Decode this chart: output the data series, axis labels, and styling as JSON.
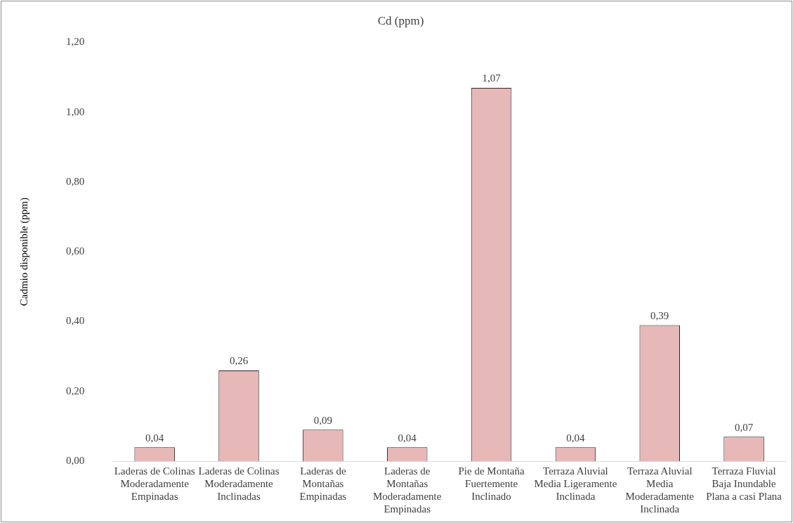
{
  "chart_data": {
    "type": "bar",
    "title": "Cd (ppm)",
    "ylabel": "Cadmio disponible (ppm)",
    "categories": [
      "Laderas de Colinas Moderadamente Empinadas",
      "Laderas de Colinas Moderadamente Inclinadas",
      "Laderas de Montañas Empinadas",
      "Laderas de Montañas Moderadamente Empinadas",
      "Pie de Montaña Fuertemente Inclinado",
      "Terraza Aluvial Media Ligeramente Inclinada",
      "Terraza Aluvial Media Moderadamente Inclinada",
      "Terraza Fluvial Baja Inundable Plana a casi Plana"
    ],
    "values": [
      0.04,
      0.26,
      0.09,
      0.04,
      1.07,
      0.04,
      0.39,
      0.07
    ],
    "value_labels": [
      "0,04",
      "0,26",
      "0,09",
      "0,04",
      "1,07",
      "0,04",
      "0,39",
      "0,07"
    ],
    "color": "#e6b8b7",
    "ylim": [
      0,
      1.2
    ],
    "yticks": [
      {
        "value": 0,
        "label": "0,00"
      },
      {
        "value": 0.2,
        "label": "0,20"
      },
      {
        "value": 0.4,
        "label": "0,40"
      },
      {
        "value": 0.6,
        "label": "0,60"
      },
      {
        "value": 0.8,
        "label": "0,80"
      },
      {
        "value": 1,
        "label": "1,00"
      },
      {
        "value": 1.2,
        "label": "1,20"
      }
    ],
    "grid": false,
    "legend": false
  }
}
